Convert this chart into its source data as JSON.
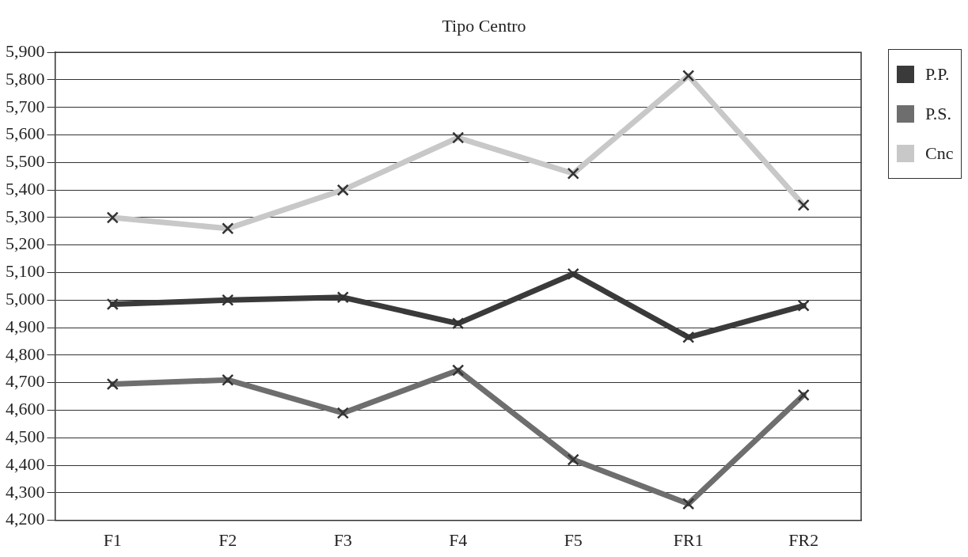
{
  "chart_data": {
    "type": "line",
    "title": "Tipo Centro",
    "categories": [
      "F1",
      "F2",
      "F3",
      "F4",
      "F5",
      "FR1",
      "FR2"
    ],
    "series": [
      {
        "name": "P.P.",
        "color": "#3a3a3a",
        "values": [
          4985,
          5000,
          5010,
          4915,
          5095,
          4865,
          4980
        ]
      },
      {
        "name": "P.S.",
        "color": "#6e6e6e",
        "values": [
          4695,
          4710,
          4590,
          4745,
          4420,
          4260,
          4655
        ]
      },
      {
        "name": "Cnc",
        "color": "#c8c8c8",
        "values": [
          5300,
          5260,
          5400,
          5590,
          5460,
          5815,
          5345
        ]
      }
    ],
    "ylim": [
      4200,
      5900
    ],
    "yticks": [
      {
        "value": 4200,
        "label": "4,200"
      },
      {
        "value": 4300,
        "label": "4,300"
      },
      {
        "value": 4400,
        "label": "4,400"
      },
      {
        "value": 4500,
        "label": "4,500"
      },
      {
        "value": 4600,
        "label": "4,600"
      },
      {
        "value": 4700,
        "label": "4,700"
      },
      {
        "value": 4800,
        "label": "4,800"
      },
      {
        "value": 4900,
        "label": "4,900"
      },
      {
        "value": 5000,
        "label": "5,000"
      },
      {
        "value": 5100,
        "label": "5,100"
      },
      {
        "value": 5200,
        "label": "5,200"
      },
      {
        "value": 5300,
        "label": "5,300"
      },
      {
        "value": 5400,
        "label": "5,400"
      },
      {
        "value": 5500,
        "label": "5,500"
      },
      {
        "value": 5600,
        "label": "5,600"
      },
      {
        "value": 5700,
        "label": "5,700"
      },
      {
        "value": 5800,
        "label": "5,800"
      },
      {
        "value": 5900,
        "label": "5,900"
      }
    ],
    "grid": "y",
    "legend": "right",
    "marker": "cross",
    "line_style": "solid"
  }
}
